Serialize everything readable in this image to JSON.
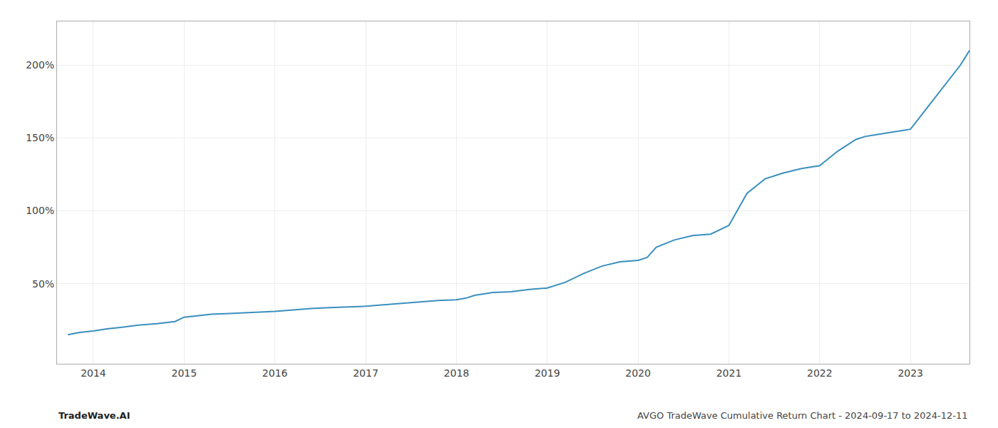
{
  "chart_data": {
    "type": "line",
    "title": "AVGO TradeWave Cumulative Return Chart - 2024-09-17 to 2024-12-11",
    "annotations": [
      "TradeWave.AI"
    ],
    "x": [
      2013.72,
      2013.85,
      2014.0,
      2014.15,
      2014.3,
      2014.5,
      2014.7,
      2014.9,
      2015.0,
      2015.15,
      2015.3,
      2015.5,
      2015.7,
      2015.9,
      2016.0,
      2016.2,
      2016.4,
      2016.6,
      2016.8,
      2017.0,
      2017.2,
      2017.4,
      2017.6,
      2017.8,
      2018.0,
      2018.1,
      2018.2,
      2018.4,
      2018.6,
      2018.8,
      2019.0,
      2019.2,
      2019.4,
      2019.6,
      2019.8,
      2020.0,
      2020.1,
      2020.2,
      2020.4,
      2020.6,
      2020.8,
      2021.0,
      2021.2,
      2021.4,
      2021.6,
      2021.8,
      2022.0,
      2022.2,
      2022.4,
      2022.5,
      2022.6,
      2022.8,
      2023.0,
      2023.2,
      2023.4,
      2023.55,
      2023.65
    ],
    "values": [
      15,
      16.5,
      17.5,
      19,
      20,
      21.5,
      22.5,
      24,
      27,
      28,
      29,
      29.5,
      30,
      30.5,
      31,
      32,
      33,
      33.5,
      34,
      34.5,
      35.5,
      36.5,
      37.5,
      38.5,
      39,
      40,
      42,
      44,
      44.5,
      46,
      47,
      51,
      57,
      62,
      65,
      66,
      68,
      75,
      80,
      83,
      84,
      90,
      112,
      122,
      126,
      129,
      131,
      141,
      149,
      151,
      152,
      154,
      156,
      172,
      188,
      200,
      210
    ],
    "color": "#3a8fbf",
    "xlim": [
      2013.6,
      2023.65
    ],
    "xticks": [
      2014,
      2015,
      2016,
      2017,
      2018,
      2019,
      2020,
      2021,
      2022,
      2023
    ],
    "ylim": [
      -5,
      230
    ],
    "yticks": [
      {
        "value": 50,
        "label": "50%"
      },
      {
        "value": 100,
        "label": "100%"
      },
      {
        "value": 150,
        "label": "150%"
      },
      {
        "value": 200,
        "label": "200%"
      }
    ],
    "grid": true
  }
}
